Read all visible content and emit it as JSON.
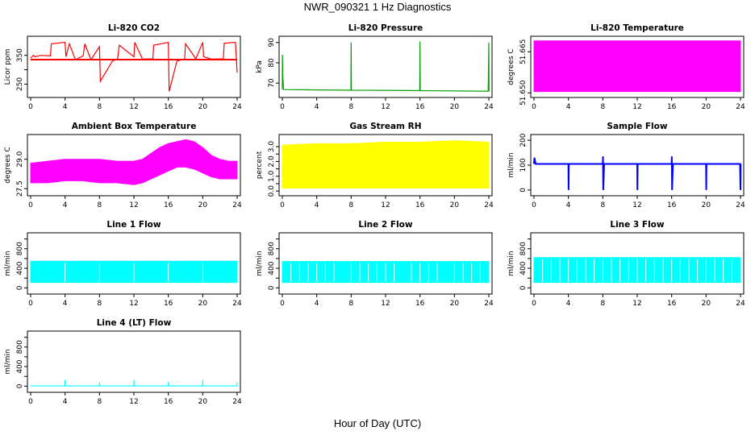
{
  "figure": {
    "title": "NWR_090321  1 Hz Diagnostics",
    "xlabel": "Hour of Day (UTC)"
  },
  "chart_data": [
    {
      "type": "line",
      "title": "Li-820 CO2",
      "ylabel": "Licor ppm",
      "color": "#ff0000",
      "xlim": [
        0,
        24
      ],
      "ylim": [
        215,
        405
      ],
      "xticks": [
        0,
        4,
        8,
        12,
        16,
        20,
        24
      ],
      "yticks": [
        250,
        300,
        350
      ],
      "ytick_labels": [
        "250",
        "",
        "350"
      ],
      "baseline": 335,
      "x": [
        0,
        0.3,
        0.5,
        1.2,
        2.3,
        2.4,
        4.0,
        4.1,
        4.5,
        5.2,
        6.1,
        6.3,
        7.0,
        8.0,
        8.1,
        9.5,
        10.1,
        10.3,
        12.0,
        12.1,
        13.0,
        14.2,
        14.3,
        16.0,
        16.1,
        17.0,
        17.9,
        18.0,
        19.2,
        20.0,
        20.1,
        21.0,
        22.4,
        22.5,
        23.8,
        24.0
      ],
      "y": [
        340,
        350,
        345,
        350,
        348,
        390,
        395,
        345,
        390,
        335,
        348,
        390,
        335,
        380,
        260,
        330,
        338,
        385,
        345,
        395,
        337,
        338,
        385,
        395,
        225,
        330,
        337,
        390,
        338,
        395,
        345,
        337,
        338,
        392,
        395,
        290
      ]
    },
    {
      "type": "line",
      "title": "Li-820 Pressure",
      "ylabel": "kPa",
      "color": "#00a000",
      "xlim": [
        0,
        24
      ],
      "ylim": [
        64.5,
        91.5
      ],
      "xticks": [
        0,
        4,
        8,
        12,
        16,
        20,
        24
      ],
      "yticks": [
        70,
        80,
        90
      ],
      "ytick_labels": [
        "70",
        "80",
        "90"
      ],
      "x": [
        0,
        0.02,
        0.05,
        0.15,
        7.97,
        8.0,
        8.03,
        15.97,
        16.0,
        16.03,
        23.93,
        24.0,
        24.02
      ],
      "y": [
        66.8,
        84,
        74,
        66.8,
        66.5,
        90,
        66.5,
        66.3,
        90.5,
        66.3,
        66.0,
        90,
        66.0
      ]
    },
    {
      "type": "area",
      "title": "Li-820 Temperature",
      "ylabel": "degrees C",
      "color": "#ff00ff",
      "xlim": [
        0,
        24
      ],
      "ylim": [
        51.6495,
        51.6695
      ],
      "xticks": [
        0,
        4,
        8,
        12,
        16,
        20,
        24
      ],
      "yticks": [
        51.65,
        51.665
      ],
      "ytick_labels": [
        "51.650",
        "51.665"
      ],
      "x": [
        0,
        24
      ],
      "y_low": [
        51.6505,
        51.6505
      ],
      "y_high": [
        51.669,
        51.669
      ]
    },
    {
      "type": "area",
      "title": "Ambient Box Temperature",
      "ylabel": "degrees C",
      "color": "#ff00ff",
      "xlim": [
        0,
        24
      ],
      "ylim": [
        27.3,
        30.1
      ],
      "xticks": [
        0,
        4,
        8,
        12,
        16,
        20,
        24
      ],
      "yticks": [
        27.5,
        29.0
      ],
      "ytick_labels": [
        "27.5",
        "29.0"
      ],
      "x": [
        0,
        2,
        4,
        6,
        8,
        10,
        12,
        13,
        14,
        15,
        16,
        17,
        18,
        19,
        20,
        21,
        22,
        23,
        24
      ],
      "y_low": [
        27.8,
        27.8,
        27.9,
        27.9,
        27.8,
        27.8,
        27.7,
        27.8,
        28.0,
        28.2,
        28.4,
        28.6,
        28.6,
        28.5,
        28.3,
        28.1,
        28.0,
        28.0,
        28.0
      ],
      "y_high": [
        28.8,
        28.9,
        29.0,
        29.0,
        29.0,
        28.9,
        28.9,
        29.0,
        29.3,
        29.6,
        29.8,
        29.9,
        30.0,
        29.9,
        29.6,
        29.2,
        29.0,
        28.9,
        28.9
      ]
    },
    {
      "type": "area",
      "title": "Gas Stream RH",
      "ylabel": "percent",
      "color": "#ffff00",
      "xlim": [
        0,
        24
      ],
      "ylim": [
        -0.1,
        3.6
      ],
      "xticks": [
        0,
        4,
        8,
        12,
        16,
        20,
        24
      ],
      "yticks": [
        0.0,
        0.5,
        1.0,
        1.5,
        2.0,
        2.5,
        3.0
      ],
      "ytick_labels": [
        "0.0",
        "",
        "1.0",
        "",
        "2.0",
        "",
        "3.0"
      ],
      "x": [
        0,
        4,
        8,
        12,
        16,
        20,
        24
      ],
      "y_low": [
        0.2,
        0.2,
        0.2,
        0.2,
        0.2,
        0.2,
        0.2
      ],
      "y_high": [
        3.1,
        3.2,
        3.2,
        3.3,
        3.3,
        3.4,
        3.3
      ]
    },
    {
      "type": "line",
      "title": "Sample Flow",
      "ylabel": "ml/min",
      "color": "#0000ff",
      "xlim": [
        0,
        24
      ],
      "ylim": [
        -10,
        210
      ],
      "xticks": [
        0,
        4,
        8,
        12,
        16,
        20,
        24
      ],
      "yticks": [
        0,
        100,
        200
      ],
      "ytick_labels": [
        "0",
        "100",
        "200"
      ],
      "x": [
        0,
        0.05,
        0.2,
        4.0,
        4.02,
        4.05,
        8.0,
        8.02,
        8.05,
        8.15,
        12.0,
        12.02,
        12.05,
        16.0,
        16.02,
        16.05,
        16.15,
        20.0,
        20.02,
        20.05,
        23.95,
        24.0,
        24.02
      ],
      "y": [
        105,
        130,
        105,
        105,
        0,
        105,
        105,
        135,
        0,
        105,
        105,
        0,
        105,
        105,
        135,
        0,
        105,
        105,
        0,
        105,
        105,
        0,
        105
      ]
    },
    {
      "type": "area",
      "title": "Line 1 Flow",
      "ylabel": "ml/min",
      "color": "#00ffff",
      "xlim": [
        0,
        24
      ],
      "ylim": [
        -60,
        1060
      ],
      "xticks": [
        0,
        4,
        8,
        12,
        16,
        20,
        24
      ],
      "yticks": [
        0,
        200,
        400,
        600,
        800,
        1000
      ],
      "ytick_labels": [
        "0",
        "",
        "400",
        "",
        "800",
        ""
      ],
      "x": [
        0,
        24
      ],
      "y_low": [
        110,
        110
      ],
      "y_high": [
        545,
        545
      ],
      "gaps_x": [
        4,
        8,
        12,
        16,
        20
      ]
    },
    {
      "type": "area",
      "title": "Line 2 Flow",
      "ylabel": "ml/min",
      "color": "#00ffff",
      "xlim": [
        0,
        24
      ],
      "ylim": [
        -60,
        1060
      ],
      "xticks": [
        0,
        4,
        8,
        12,
        16,
        20,
        24
      ],
      "yticks": [
        0,
        200,
        400,
        600,
        800,
        1000
      ],
      "ytick_labels": [
        "0",
        "",
        "400",
        "",
        "800",
        ""
      ],
      "x": [
        0,
        24
      ],
      "y_low": [
        110,
        110
      ],
      "y_high": [
        540,
        540
      ],
      "gaps_x": [
        1,
        2,
        3,
        4,
        5,
        6,
        8,
        9,
        10,
        11,
        12,
        13,
        15,
        16,
        17,
        18,
        20,
        21,
        22,
        23
      ]
    },
    {
      "type": "area",
      "title": "Line 3 Flow",
      "ylabel": "ml/min",
      "color": "#00ffff",
      "xlim": [
        0,
        24
      ],
      "ylim": [
        -60,
        1060
      ],
      "xticks": [
        0,
        4,
        8,
        12,
        16,
        20,
        24
      ],
      "yticks": [
        0,
        200,
        400,
        600,
        800,
        1000
      ],
      "ytick_labels": [
        "0",
        "",
        "400",
        "",
        "800",
        ""
      ],
      "x": [
        0,
        24
      ],
      "y_low": [
        110,
        110
      ],
      "y_high": [
        620,
        620
      ],
      "gaps_x": [
        1,
        2,
        3,
        4,
        5,
        6,
        7,
        8,
        9,
        10,
        11,
        12,
        13,
        14,
        15,
        16,
        17,
        18,
        19,
        20,
        21,
        22,
        23
      ]
    },
    {
      "type": "line",
      "title": "Line 4 (LT) Flow",
      "ylabel": "ml/min",
      "color": "#00ffff",
      "xlim": [
        0,
        24
      ],
      "ylim": [
        -60,
        1060
      ],
      "xticks": [
        0,
        4,
        8,
        12,
        16,
        20,
        24
      ],
      "yticks": [
        0,
        200,
        400,
        600,
        800,
        1000
      ],
      "ytick_labels": [
        "0",
        "",
        "400",
        "",
        "800",
        ""
      ],
      "x": [
        0,
        3.98,
        4.0,
        4.02,
        7.98,
        8.0,
        8.02,
        11.98,
        12.0,
        12.02,
        15.98,
        16.0,
        16.02,
        19.98,
        20.0,
        20.02,
        23.98,
        24.0
      ],
      "y": [
        5,
        5,
        130,
        5,
        5,
        75,
        5,
        5,
        130,
        5,
        5,
        75,
        5,
        5,
        130,
        5,
        5,
        75
      ]
    }
  ]
}
